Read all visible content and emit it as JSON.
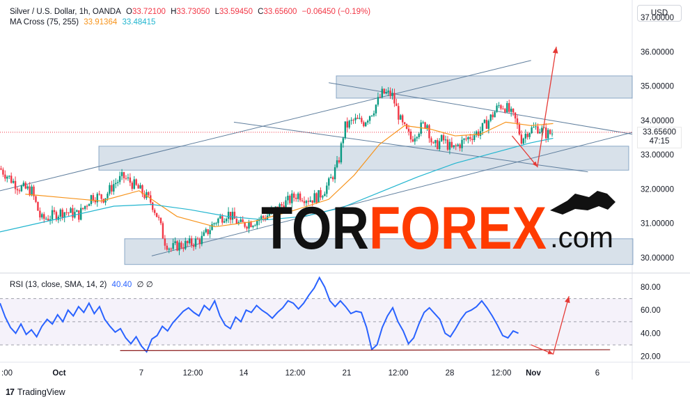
{
  "legend": {
    "symbol": "Silver / U.S. Dollar, 1h, OANDA",
    "open_label": "O",
    "open": "33.72100",
    "high_label": "H",
    "high": "33.73050",
    "low_label": "L",
    "low": "33.59450",
    "close_label": "C",
    "close": "33.65600",
    "change": "−0.06450 (−0.19%)",
    "ma_label": "MA Cross (75, 255)",
    "ma_fast": "33.91364",
    "ma_slow": "33.48415",
    "rsi_label": "RSI (13, close, SMA, 14, 2)",
    "rsi_value": "40.40",
    "rsi_flags": "∅  ∅"
  },
  "currency_button": "USD",
  "price_tag": {
    "price": "33.65600",
    "countdown": "47:15"
  },
  "watermark": {
    "text": "TORFOREX",
    "suffix": ".com"
  },
  "branding": {
    "logo": "17",
    "name": "TradingView"
  },
  "colors": {
    "up": "#089981",
    "down": "#f23645",
    "ma_fast": "#f7931a",
    "ma_slow": "#21b5cf",
    "rsi": "#2962ff",
    "zone": "#a9bdd0",
    "arrow": "#e53935",
    "trend": "#5f7e9d"
  },
  "chart_data": [
    {
      "type": "candlestick",
      "title": "Silver / U.S. Dollar, 1h, OANDA",
      "x_ticks": [
        ":00",
        "Oct",
        "7",
        "12:00",
        "14",
        "12:00",
        "21",
        "12:00",
        "28",
        "12:00",
        "Nov",
        "6"
      ],
      "y_ticks": [
        "37.00000",
        "36.00000",
        "35.00000",
        "34.00000",
        "33.00000",
        "32.00000",
        "31.00000",
        "30.00000"
      ],
      "ylim": [
        29.55,
        37.35
      ],
      "price_path": [
        [
          0,
          32.6
        ],
        [
          0.03,
          32.05
        ],
        [
          0.05,
          31.95
        ],
        [
          0.065,
          31.1
        ],
        [
          0.08,
          31.2
        ],
        [
          0.1,
          31.35
        ],
        [
          0.125,
          31.25
        ],
        [
          0.145,
          31.8
        ],
        [
          0.165,
          31.75
        ],
        [
          0.18,
          32.15
        ],
        [
          0.195,
          32.35
        ],
        [
          0.21,
          32.15
        ],
        [
          0.225,
          31.9
        ],
        [
          0.24,
          31.6
        ],
        [
          0.25,
          31.15
        ],
        [
          0.26,
          30.5
        ],
        [
          0.27,
          30.25
        ],
        [
          0.28,
          30.35
        ],
        [
          0.3,
          30.4
        ],
        [
          0.32,
          30.55
        ],
        [
          0.34,
          31.05
        ],
        [
          0.36,
          31.3
        ],
        [
          0.38,
          30.95
        ],
        [
          0.4,
          31.05
        ],
        [
          0.42,
          31.2
        ],
        [
          0.44,
          31.45
        ],
        [
          0.46,
          31.7
        ],
        [
          0.47,
          31.85
        ],
        [
          0.49,
          31.7
        ],
        [
          0.505,
          31.8
        ],
        [
          0.52,
          32.15
        ],
        [
          0.535,
          32.75
        ],
        [
          0.545,
          33.8
        ],
        [
          0.56,
          34.0
        ],
        [
          0.575,
          33.95
        ],
        [
          0.59,
          34.3
        ],
        [
          0.605,
          34.8
        ],
        [
          0.62,
          34.75
        ],
        [
          0.635,
          33.9
        ],
        [
          0.65,
          33.45
        ],
        [
          0.66,
          33.7
        ],
        [
          0.675,
          33.95
        ],
        [
          0.685,
          33.2
        ],
        [
          0.7,
          33.45
        ],
        [
          0.715,
          33.15
        ],
        [
          0.73,
          33.35
        ],
        [
          0.745,
          33.55
        ],
        [
          0.76,
          33.7
        ],
        [
          0.775,
          34.05
        ],
        [
          0.79,
          34.45
        ],
        [
          0.8,
          34.4
        ],
        [
          0.815,
          34.0
        ],
        [
          0.825,
          33.45
        ],
        [
          0.835,
          33.7
        ],
        [
          0.85,
          33.8
        ],
        [
          0.865,
          33.6
        ],
        [
          0.875,
          33.65
        ]
      ],
      "ma_fast_path": [
        [
          0.04,
          31.85
        ],
        [
          0.1,
          31.75
        ],
        [
          0.16,
          31.65
        ],
        [
          0.22,
          31.95
        ],
        [
          0.28,
          31.2
        ],
        [
          0.34,
          30.9
        ],
        [
          0.4,
          31.05
        ],
        [
          0.46,
          31.35
        ],
        [
          0.52,
          31.7
        ],
        [
          0.56,
          32.4
        ],
        [
          0.6,
          33.3
        ],
        [
          0.64,
          33.85
        ],
        [
          0.68,
          33.75
        ],
        [
          0.72,
          33.55
        ],
        [
          0.76,
          33.6
        ],
        [
          0.8,
          33.95
        ],
        [
          0.84,
          33.85
        ],
        [
          0.875,
          33.91
        ]
      ],
      "ma_slow_path": [
        [
          0.0,
          30.75
        ],
        [
          0.06,
          31.0
        ],
        [
          0.12,
          31.25
        ],
        [
          0.18,
          31.5
        ],
        [
          0.24,
          31.55
        ],
        [
          0.3,
          31.4
        ],
        [
          0.36,
          31.2
        ],
        [
          0.42,
          31.1
        ],
        [
          0.48,
          31.2
        ],
        [
          0.54,
          31.45
        ],
        [
          0.6,
          31.9
        ],
        [
          0.66,
          32.35
        ],
        [
          0.72,
          32.75
        ],
        [
          0.78,
          33.05
        ],
        [
          0.84,
          33.35
        ],
        [
          0.875,
          33.48
        ]
      ],
      "levels": {
        "last_price": 33.656
      },
      "zones": [
        [
          34.65,
          35.3
        ],
        [
          32.55,
          33.25
        ],
        [
          29.8,
          30.55
        ]
      ],
      "trendlines": [
        [
          [
            0.0,
            31.95
          ],
          [
            0.84,
            35.75
          ]
        ],
        [
          [
            0.24,
            30.05
          ],
          [
            1.0,
            33.65
          ]
        ],
        [
          [
            0.37,
            33.95
          ],
          [
            0.93,
            32.5
          ]
        ],
        [
          [
            0.52,
            35.1
          ],
          [
            1.0,
            33.6
          ]
        ]
      ],
      "forecast": [
        [
          [
            0.81,
            33.55
          ],
          [
            0.85,
            32.65
          ],
          [
            0.88,
            36.15
          ]
        ]
      ]
    },
    {
      "type": "line",
      "title": "RSI (13, close, SMA, 14, 2)",
      "y_ticks": [
        "80.00",
        "60.00",
        "40.00",
        "20.00"
      ],
      "ylim": [
        15,
        92
      ],
      "band": [
        30,
        70
      ],
      "midline": 50,
      "series": [
        {
          "values": [
            66,
            54,
            45,
            40,
            48,
            39,
            43,
            37,
            46,
            52,
            48,
            56,
            50,
            60,
            55,
            63,
            58,
            66,
            57,
            63,
            52,
            46,
            41,
            44,
            36,
            31,
            37,
            29,
            24,
            35,
            38,
            46,
            42,
            49,
            54,
            59,
            62,
            58,
            55,
            64,
            60,
            68,
            55,
            47,
            44,
            54,
            50,
            60,
            58,
            64,
            60,
            57,
            53,
            58,
            62,
            68,
            66,
            61,
            66,
            73,
            79,
            88,
            80,
            68,
            63,
            68,
            63,
            57,
            59,
            58,
            45,
            26,
            30,
            45,
            55,
            62,
            50,
            42,
            31,
            36,
            48,
            58,
            62,
            57,
            52,
            40,
            37,
            44,
            52,
            58,
            60,
            63,
            68,
            62,
            55,
            47,
            38,
            36,
            42,
            40
          ]
        }
      ],
      "forecast": [
        [
          [
            0.84,
            30
          ],
          [
            0.875,
            22
          ],
          [
            0.9,
            72
          ]
        ]
      ],
      "support_line": [
        [
          0.19,
          25
        ],
        [
          0.965,
          25.8
        ]
      ]
    }
  ]
}
